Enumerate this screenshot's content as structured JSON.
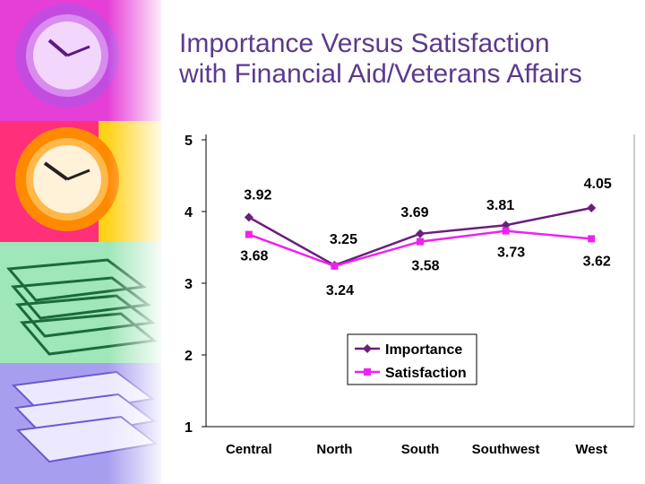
{
  "title_line1": "Importance Versus Satisfaction",
  "title_line2": "with Financial Aid/Veterans Affairs",
  "colors": {
    "title": "#5b3a8c",
    "importance": "#6a1f7a",
    "satisfaction": "#ee22ee"
  },
  "chart_data": {
    "type": "line",
    "title": "Importance Versus Satisfaction with Financial Aid/Veterans Affairs",
    "categories": [
      "Central",
      "North",
      "South",
      "Southwest",
      "West"
    ],
    "ylim": [
      1,
      5
    ],
    "yticks": [
      "1",
      "2",
      "3",
      "4",
      "5"
    ],
    "grid": false,
    "legend_position": "lower-center",
    "series": [
      {
        "name": "Importance",
        "values": [
          3.92,
          3.25,
          3.69,
          3.81,
          4.05
        ],
        "labels": [
          "3.92",
          "3.25",
          "3.69",
          "3.81",
          "4.05"
        ]
      },
      {
        "name": "Satisfaction",
        "values": [
          3.68,
          3.24,
          3.58,
          3.73,
          3.62
        ],
        "labels": [
          "3.68",
          "3.24",
          "3.58",
          "3.73",
          "3.62"
        ]
      }
    ]
  }
}
